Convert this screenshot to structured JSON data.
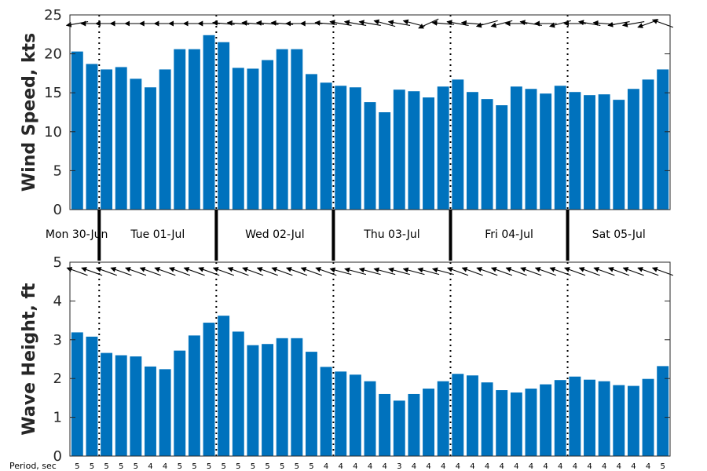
{
  "chart_data": [
    {
      "type": "bar",
      "ylabel": "Wind Speed, kts",
      "ylim": [
        0,
        25
      ],
      "yticks": [
        0,
        5,
        10,
        15,
        20,
        25
      ],
      "values": [
        20.3,
        18.7,
        18.0,
        18.3,
        16.8,
        15.7,
        18.0,
        20.6,
        20.6,
        22.4,
        21.5,
        18.2,
        18.1,
        19.2,
        20.6,
        20.6,
        17.4,
        16.3,
        15.9,
        15.7,
        13.8,
        12.5,
        15.4,
        15.2,
        14.4,
        15.8,
        16.7,
        15.1,
        14.2,
        13.4,
        15.8,
        15.5,
        14.9,
        15.9,
        15.1,
        14.7,
        14.8,
        14.1,
        15.5,
        16.7,
        18.0
      ],
      "direction_arrows_deg": [
        190,
        180,
        180,
        180,
        180,
        180,
        180,
        180,
        180,
        180,
        175,
        175,
        175,
        175,
        175,
        180,
        180,
        175,
        170,
        170,
        170,
        165,
        170,
        165,
        205,
        175,
        170,
        175,
        195,
        195,
        180,
        170,
        180,
        195,
        180,
        170,
        175,
        190,
        190,
        200,
        160
      ],
      "grid": false,
      "color": "#0072BD"
    },
    {
      "type": "bar",
      "ylabel": "Wave Height, ft",
      "ylim": [
        0,
        5
      ],
      "yticks": [
        0,
        1,
        2,
        3,
        4,
        5
      ],
      "values": [
        3.19,
        3.08,
        2.66,
        2.6,
        2.57,
        2.31,
        2.24,
        2.72,
        3.11,
        3.44,
        3.62,
        3.21,
        2.86,
        2.89,
        3.04,
        3.04,
        2.69,
        2.3,
        2.18,
        2.1,
        1.93,
        1.6,
        1.43,
        1.6,
        1.74,
        1.93,
        2.12,
        2.08,
        1.9,
        1.7,
        1.64,
        1.74,
        1.85,
        1.96,
        2.05,
        1.97,
        1.93,
        1.83,
        1.81,
        1.99,
        2.32
      ],
      "direction_arrows_deg": [
        160,
        160,
        160,
        160,
        160,
        160,
        160,
        160,
        160,
        160,
        160,
        160,
        160,
        160,
        160,
        160,
        160,
        160,
        165,
        165,
        165,
        165,
        165,
        165,
        165,
        165,
        160,
        160,
        160,
        160,
        160,
        160,
        160,
        160,
        160,
        160,
        160,
        160,
        160,
        160,
        160
      ],
      "grid": false,
      "color": "#0072BD"
    }
  ],
  "days": [
    "Mon 30-Jun",
    "Tue 01-Jul",
    "Wed 02-Jul",
    "Thu 03-Jul",
    "Fri 04-Jul",
    "Sat 05-Jul"
  ],
  "day_bars": [
    2,
    8,
    8,
    8,
    8,
    7
  ],
  "period_label": "Period, sec",
  "periods": [
    "5",
    "5",
    "5",
    "5",
    "5",
    "4",
    "4",
    "5",
    "5",
    "5",
    "5",
    "5",
    "5",
    "5",
    "5",
    "5",
    "5",
    "4",
    "4",
    "4",
    "4",
    "4",
    "3",
    "4",
    "4",
    "4",
    "4",
    "4",
    "4",
    "4",
    "4",
    "4",
    "4",
    "4",
    "4",
    "4",
    "4",
    "4",
    "4",
    "4",
    "5"
  ]
}
